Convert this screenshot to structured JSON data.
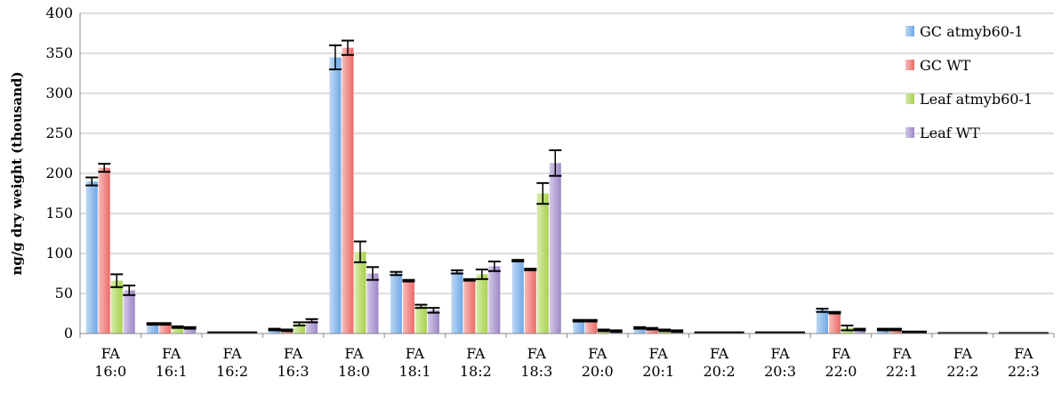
{
  "chart_data": {
    "type": "bar",
    "title": "",
    "xlabel": "",
    "ylabel": "ng/g dry weight (thousand)",
    "ylim": [
      0,
      400
    ],
    "yticks": [
      0,
      50,
      100,
      150,
      200,
      250,
      300,
      350,
      400
    ],
    "grid": true,
    "legend_position": "right",
    "categories": [
      [
        "FA",
        "16:0"
      ],
      [
        "FA",
        "16:1"
      ],
      [
        "FA",
        "16:2"
      ],
      [
        "FA",
        "16:3"
      ],
      [
        "FA",
        "18:0"
      ],
      [
        "FA",
        "18:1"
      ],
      [
        "FA",
        "18:2"
      ],
      [
        "FA",
        "18:3"
      ],
      [
        "FA",
        "20:0"
      ],
      [
        "FA",
        "20:1"
      ],
      [
        "FA",
        "20:2"
      ],
      [
        "FA",
        "20:3"
      ],
      [
        "FA",
        "22:0"
      ],
      [
        "FA",
        "22:1"
      ],
      [
        "FA",
        "22:2"
      ],
      [
        "FA",
        "22:3"
      ]
    ],
    "series": [
      {
        "name": "GC atmyb60-1",
        "color": "#6fa8e6",
        "values": [
          190,
          12,
          1,
          5,
          345,
          75,
          77,
          91,
          16,
          7,
          1,
          1,
          29,
          5,
          0.5,
          0.5
        ],
        "errors": [
          5,
          1,
          0.5,
          1,
          15,
          2,
          2,
          1,
          1,
          1,
          0.5,
          0.5,
          2,
          1,
          0.2,
          0.2
        ]
      },
      {
        "name": "GC WT",
        "color": "#ec6a66",
        "values": [
          207,
          12,
          1,
          4,
          357,
          66,
          67,
          80,
          16,
          6,
          1,
          1,
          26,
          5,
          0.5,
          0.5
        ],
        "errors": [
          5,
          1,
          0.5,
          1,
          9,
          1,
          1,
          1,
          1,
          1,
          0.5,
          0.5,
          1,
          1,
          0.2,
          0.2
        ]
      },
      {
        "name": "Leaf atmyb60-1",
        "color": "#a8d24a",
        "values": [
          66,
          8,
          1,
          12,
          102,
          34,
          74,
          175,
          4,
          4,
          1,
          1,
          7,
          2,
          0.5,
          0.5
        ],
        "errors": [
          8,
          1,
          0.5,
          2,
          13,
          2,
          6,
          13,
          1,
          1,
          0.5,
          0.5,
          3,
          0.5,
          0.2,
          0.2
        ]
      },
      {
        "name": "Leaf WT",
        "color": "#9e86c8",
        "values": [
          54,
          7,
          1,
          16,
          75,
          29,
          84,
          213,
          3,
          3,
          1,
          1,
          5,
          2,
          0.5,
          0.5
        ],
        "errors": [
          6,
          1,
          0.5,
          2,
          8,
          3,
          6,
          16,
          1,
          1,
          0.5,
          0.5,
          1,
          0.5,
          0.2,
          0.2
        ]
      }
    ]
  }
}
